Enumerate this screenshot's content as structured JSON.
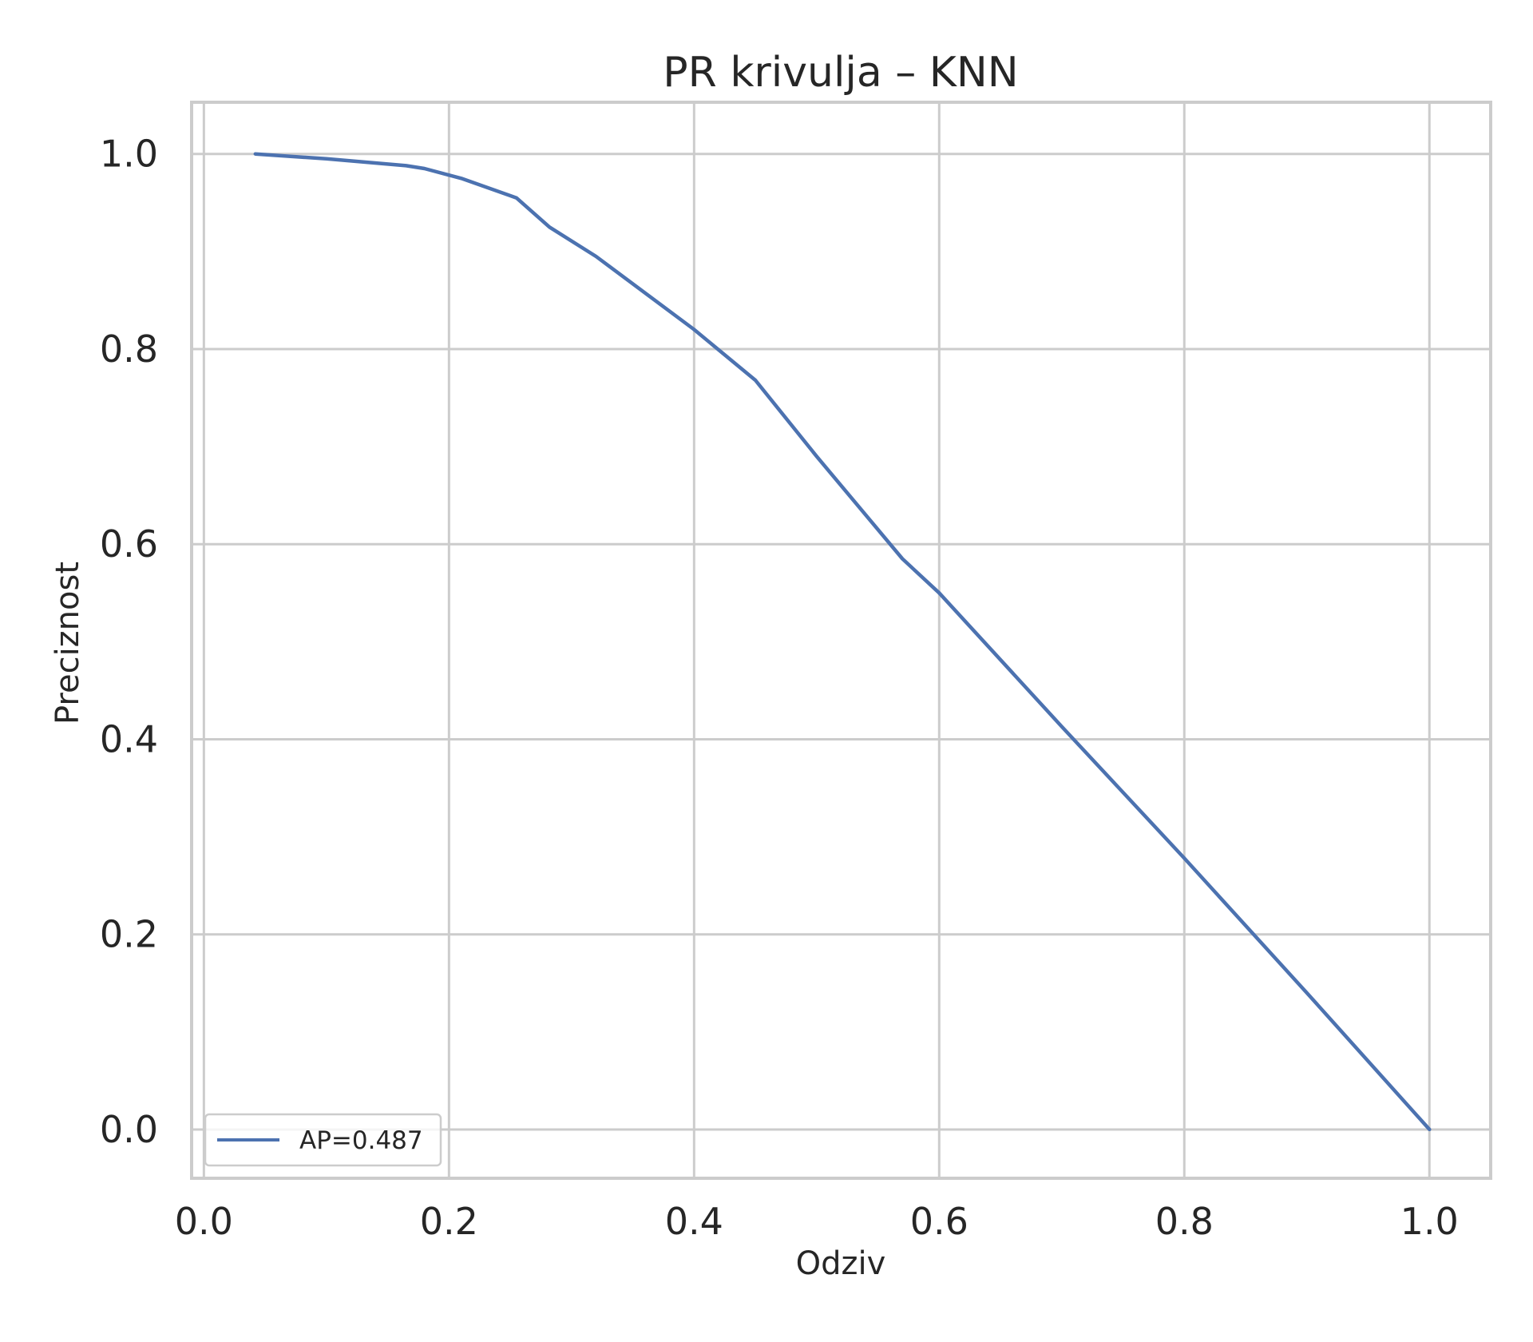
{
  "chart_data": {
    "type": "line",
    "title": "PR krivulja – KNN",
    "xlabel": "Odziv",
    "ylabel": "Preciznost",
    "xlim": [
      -0.01,
      1.05
    ],
    "ylim": [
      -0.05,
      1.053
    ],
    "xticks": [
      "0.0",
      "0.2",
      "0.4",
      "0.6",
      "0.8",
      "1.0"
    ],
    "yticks": [
      "0.0",
      "0.2",
      "0.4",
      "0.6",
      "0.8",
      "1.0"
    ],
    "grid": true,
    "legend_position": "bottom-left",
    "series": [
      {
        "name": "AP=0.487",
        "color": "#4c72b0",
        "x": [
          0.042,
          0.1,
          0.165,
          0.18,
          0.21,
          0.255,
          0.282,
          0.32,
          0.4,
          0.45,
          0.5,
          0.57,
          0.6,
          0.7,
          0.8,
          0.9,
          1.0
        ],
        "y": [
          1.0,
          0.995,
          0.988,
          0.985,
          0.975,
          0.955,
          0.925,
          0.895,
          0.82,
          0.768,
          0.69,
          0.585,
          0.55,
          0.413,
          0.278,
          0.14,
          0.0
        ]
      }
    ]
  }
}
